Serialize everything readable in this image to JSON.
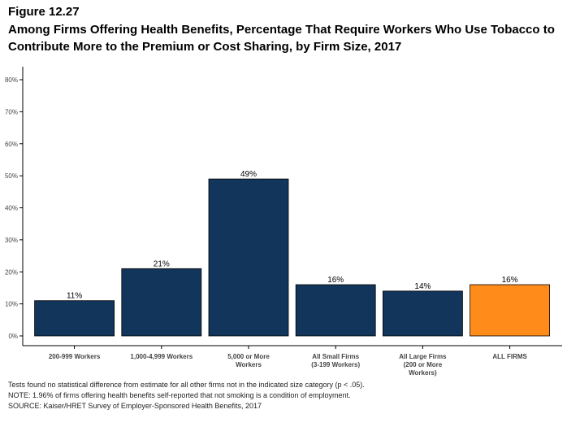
{
  "header": {
    "figure_label": "Figure 12.27",
    "title": "Among Firms Offering Health Benefits, Percentage That Require Workers Who Use Tobacco to Contribute More to the Premium or Cost Sharing, by Firm Size, 2017"
  },
  "chart_data": {
    "type": "bar",
    "categories": [
      [
        "200-999 Workers"
      ],
      [
        "1,000-4,999 Workers"
      ],
      [
        "5,000 or More",
        "Workers"
      ],
      [
        "All Small Firms",
        "(3-199 Workers)"
      ],
      [
        "All Large Firms",
        "(200 or More",
        "Workers)"
      ],
      [
        "ALL FIRMS"
      ]
    ],
    "values": [
      11,
      21,
      49,
      16,
      14,
      16
    ],
    "value_labels": [
      "11%",
      "21%",
      "49%",
      "16%",
      "14%",
      "16%"
    ],
    "colors": [
      "#12355b",
      "#12355b",
      "#12355b",
      "#12355b",
      "#12355b",
      "#ff8c1a"
    ],
    "ylim": [
      0,
      80
    ],
    "yticks": [
      0,
      10,
      20,
      30,
      40,
      50,
      60,
      70,
      80
    ],
    "ytick_labels": [
      "0%",
      "10%",
      "20%",
      "30%",
      "40%",
      "50%",
      "60%",
      "70%",
      "80%"
    ],
    "grid": false,
    "legend": "none"
  },
  "notes": {
    "line1": "Tests found no statistical difference from estimate for all other firms not in the indicated size category (p < .05).",
    "line2": "NOTE: 1.96% of firms offering health benefits self-reported that not smoking is a condition of employment.",
    "line3": "SOURCE: Kaiser/HRET Survey of Employer-Sponsored Health Benefits, 2017"
  }
}
